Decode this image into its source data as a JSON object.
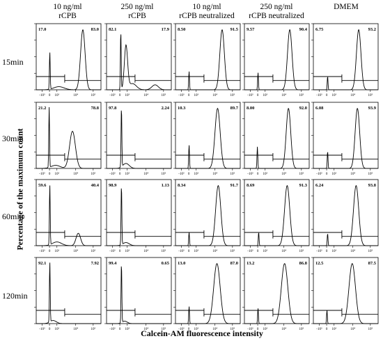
{
  "chart_data": {
    "type": "histogram-grid",
    "columns": [
      "10 ng/ml\nrCPB",
      "250 ng/ml\nrCPB",
      "10 ng/ml\nrCPB neutralized",
      "250 ng/ml\nrCPB neutralized",
      "DMEM"
    ],
    "rows": [
      "15min",
      "30min",
      "60min",
      "120min"
    ],
    "xlabel": "Calcein-AM fluorescence intensity",
    "ylabel": "Percentage of the maximum count",
    "x_tick_labels": [
      "-10³",
      "0",
      "10³",
      "10⁴",
      "10⁵"
    ],
    "x_ticks": [
      -1000,
      0,
      1000,
      10000,
      100000
    ],
    "x_scale": "biexponential",
    "gates": [
      {
        "row": "15min",
        "panels": [
          {
            "column": 0,
            "left_pct": "17.0",
            "right_pct": "83.0"
          },
          {
            "column": 1,
            "left_pct": "82.1",
            "right_pct": "17.9"
          },
          {
            "column": 2,
            "left_pct": "8.50",
            "right_pct": "91.5"
          },
          {
            "column": 3,
            "left_pct": "9.57",
            "right_pct": "90.4"
          },
          {
            "column": 4,
            "left_pct": "6.75",
            "right_pct": "93.2"
          }
        ]
      },
      {
        "row": "30min",
        "panels": [
          {
            "column": 0,
            "left_pct": "21.2",
            "right_pct": "78.8"
          },
          {
            "column": 1,
            "left_pct": "97.8",
            "right_pct": "2.24"
          },
          {
            "column": 2,
            "left_pct": "10.3",
            "right_pct": "89.7"
          },
          {
            "column": 3,
            "left_pct": "8.00",
            "right_pct": "92.0"
          },
          {
            "column": 4,
            "left_pct": "6.08",
            "right_pct": "93.9"
          }
        ]
      },
      {
        "row": "60min",
        "panels": [
          {
            "column": 0,
            "left_pct": "59.6",
            "right_pct": "40.4"
          },
          {
            "column": 1,
            "left_pct": "98.9",
            "right_pct": "1.13"
          },
          {
            "column": 2,
            "left_pct": "8.34",
            "right_pct": "91.7"
          },
          {
            "column": 3,
            "left_pct": "8.69",
            "right_pct": "91.3"
          },
          {
            "column": 4,
            "left_pct": "6.24",
            "right_pct": "93.8"
          }
        ]
      },
      {
        "row": "120min",
        "panels": [
          {
            "column": 0,
            "left_pct": "92.1",
            "right_pct": "7.92"
          },
          {
            "column": 1,
            "left_pct": "99.4",
            "right_pct": "0.65"
          },
          {
            "column": 2,
            "left_pct": "13.0",
            "right_pct": "87.0"
          },
          {
            "column": 3,
            "left_pct": "13.2",
            "right_pct": "86.8"
          },
          {
            "column": 4,
            "left_pct": "12.5",
            "right_pct": "87.5"
          }
        ]
      }
    ]
  }
}
